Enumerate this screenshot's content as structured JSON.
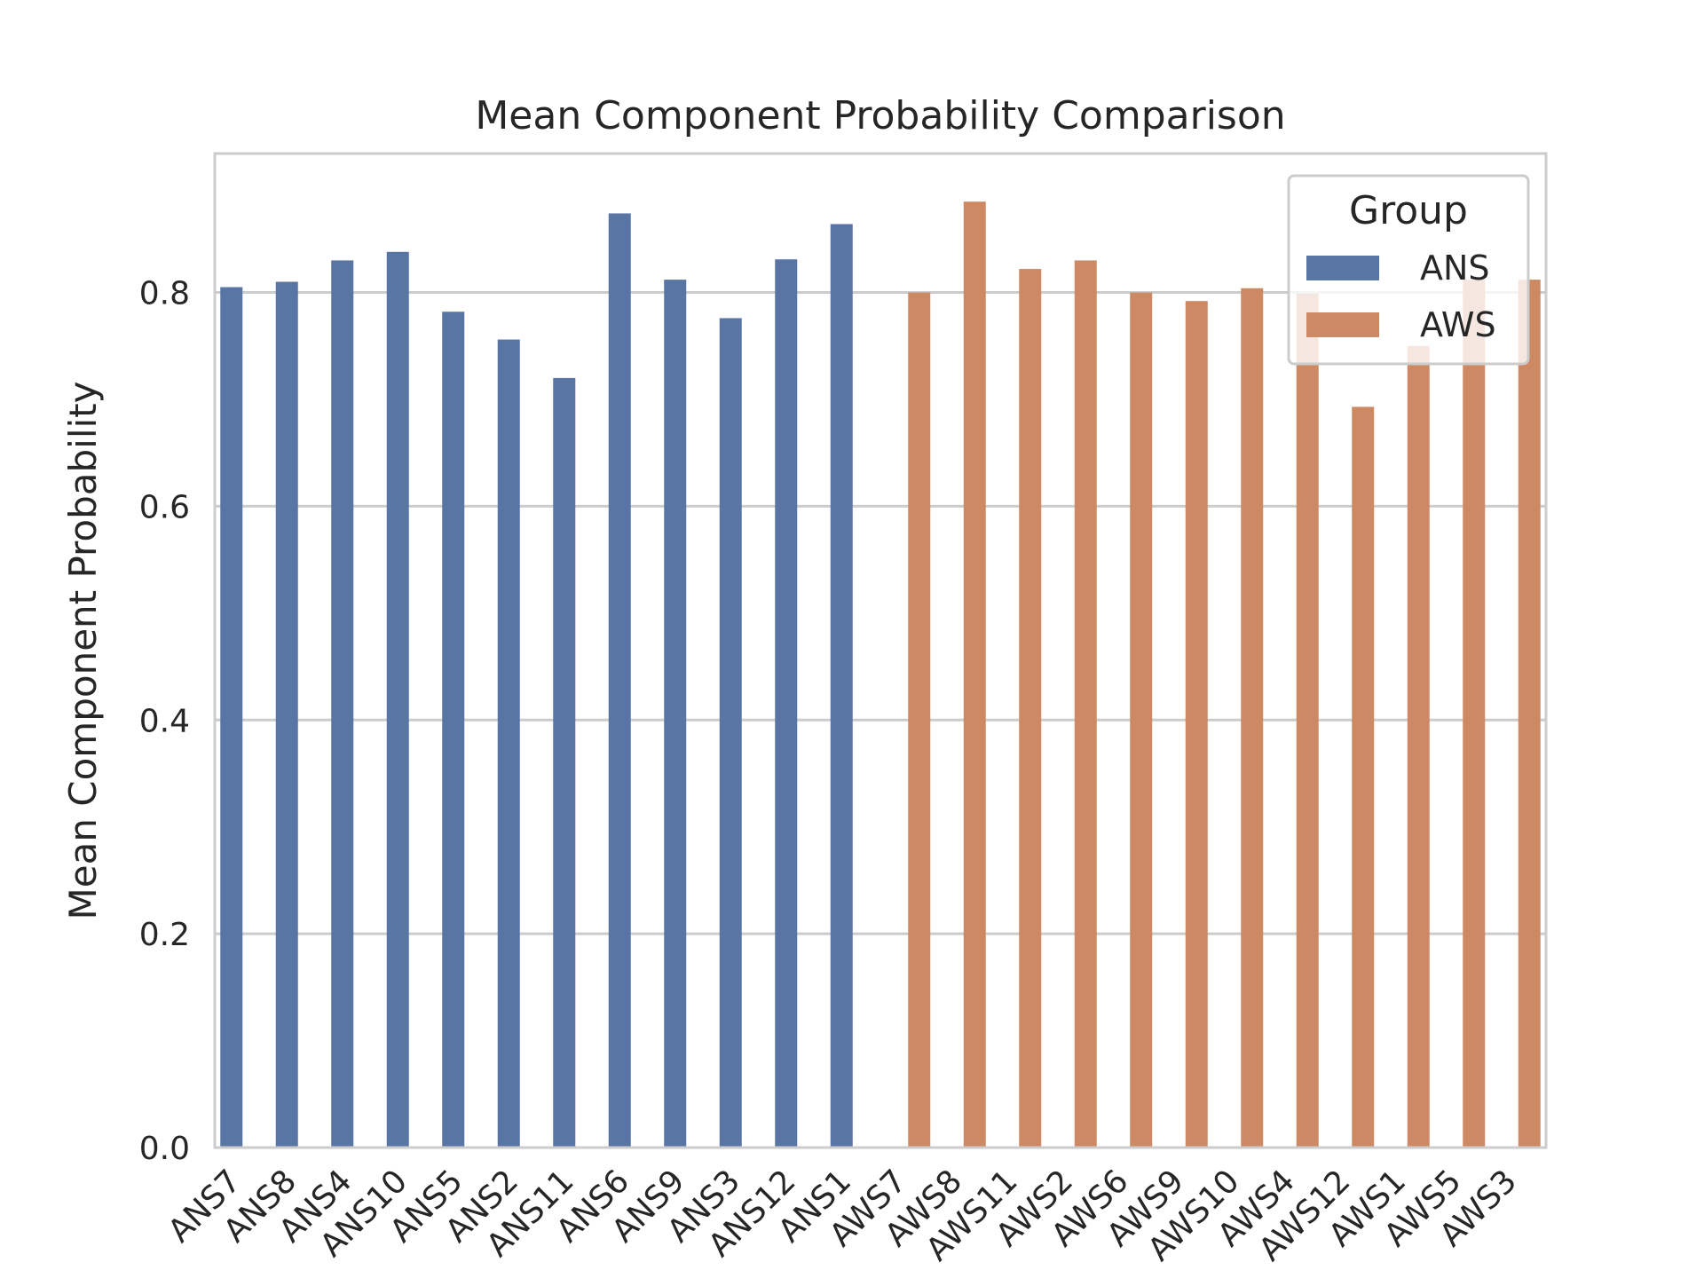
{
  "chart_data": {
    "type": "bar",
    "title": "Mean Component Probability Comparison",
    "xlabel": "",
    "ylabel": "Mean Component Probability",
    "ylim": [
      0,
      0.93
    ],
    "yticks": [
      0.0,
      0.2,
      0.4,
      0.6,
      0.8
    ],
    "ytick_labels": [
      "0.0",
      "0.2",
      "0.4",
      "0.6",
      "0.8"
    ],
    "grid": "horizontal",
    "legend": {
      "title": "Group",
      "placement": "top-right",
      "entries": [
        "ANS",
        "AWS"
      ]
    },
    "categories": [
      "ANS7",
      "ANS8",
      "ANS4",
      "ANS10",
      "ANS5",
      "ANS2",
      "ANS11",
      "ANS6",
      "ANS9",
      "ANS3",
      "ANS12",
      "ANS1",
      "AWS7",
      "AWS8",
      "AWS11",
      "AWS2",
      "AWS6",
      "AWS9",
      "AWS10",
      "AWS4",
      "AWS12",
      "AWS1",
      "AWS5",
      "AWS3"
    ],
    "series": [
      {
        "name": "ANS",
        "color": "#5975a4",
        "values": [
          0.805,
          0.81,
          0.83,
          0.838,
          0.782,
          0.756,
          0.72,
          0.874,
          0.812,
          0.776,
          0.831,
          0.864,
          null,
          null,
          null,
          null,
          null,
          null,
          null,
          null,
          null,
          null,
          null,
          null
        ]
      },
      {
        "name": "AWS",
        "color": "#cc8963",
        "values": [
          null,
          null,
          null,
          null,
          null,
          null,
          null,
          null,
          null,
          null,
          null,
          null,
          0.8,
          0.885,
          0.822,
          0.83,
          0.8,
          0.792,
          0.804,
          0.799,
          0.693,
          0.75,
          0.812,
          0.812
        ]
      }
    ]
  }
}
